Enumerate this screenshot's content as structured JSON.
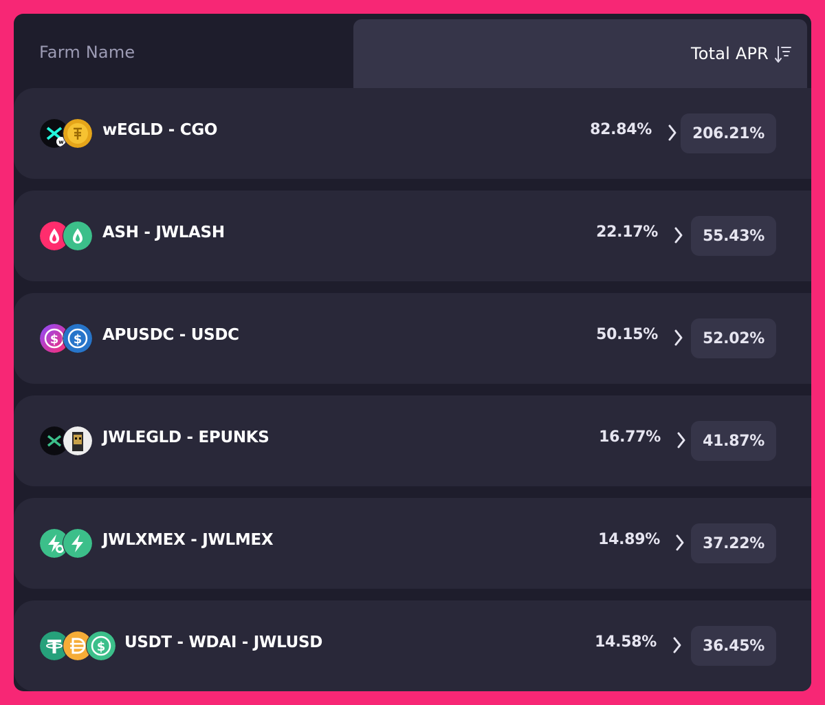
{
  "header": {
    "farm_name_label": "Farm Name",
    "total_apr_label": "Total APR",
    "sort_icon": "sort-descending-icon"
  },
  "farms": [
    {
      "name": "wEGLD - CGO",
      "base_apr": "82.84%",
      "total_apr": "206.21%",
      "tokens": [
        "wEGLD",
        "CGO"
      ]
    },
    {
      "name": "ASH - JWLASH",
      "base_apr": "22.17%",
      "total_apr": "55.43%",
      "tokens": [
        "ASH",
        "JWLASH"
      ]
    },
    {
      "name": "APUSDC - USDC",
      "base_apr": "50.15%",
      "total_apr": "52.02%",
      "tokens": [
        "APUSDC",
        "USDC"
      ]
    },
    {
      "name": "JWLEGLD - EPUNKS",
      "base_apr": "16.77%",
      "total_apr": "41.87%",
      "tokens": [
        "JWLEGLD",
        "EPUNKS"
      ]
    },
    {
      "name": "JWLXMEX - JWLMEX",
      "base_apr": "14.89%",
      "total_apr": "37.22%",
      "tokens": [
        "JWLXMEX",
        "JWLMEX"
      ]
    },
    {
      "name": "USDT - WDAI - JWLUSD",
      "base_apr": "14.58%",
      "total_apr": "36.45%",
      "tokens": [
        "USDT",
        "WDAI",
        "JWLUSD"
      ]
    }
  ],
  "colors": {
    "background": "#f72775",
    "panel": "#1e1d2c",
    "row": "#292839",
    "pill": "#363549",
    "text": "#ffffff",
    "muted": "#9c9bb4"
  }
}
